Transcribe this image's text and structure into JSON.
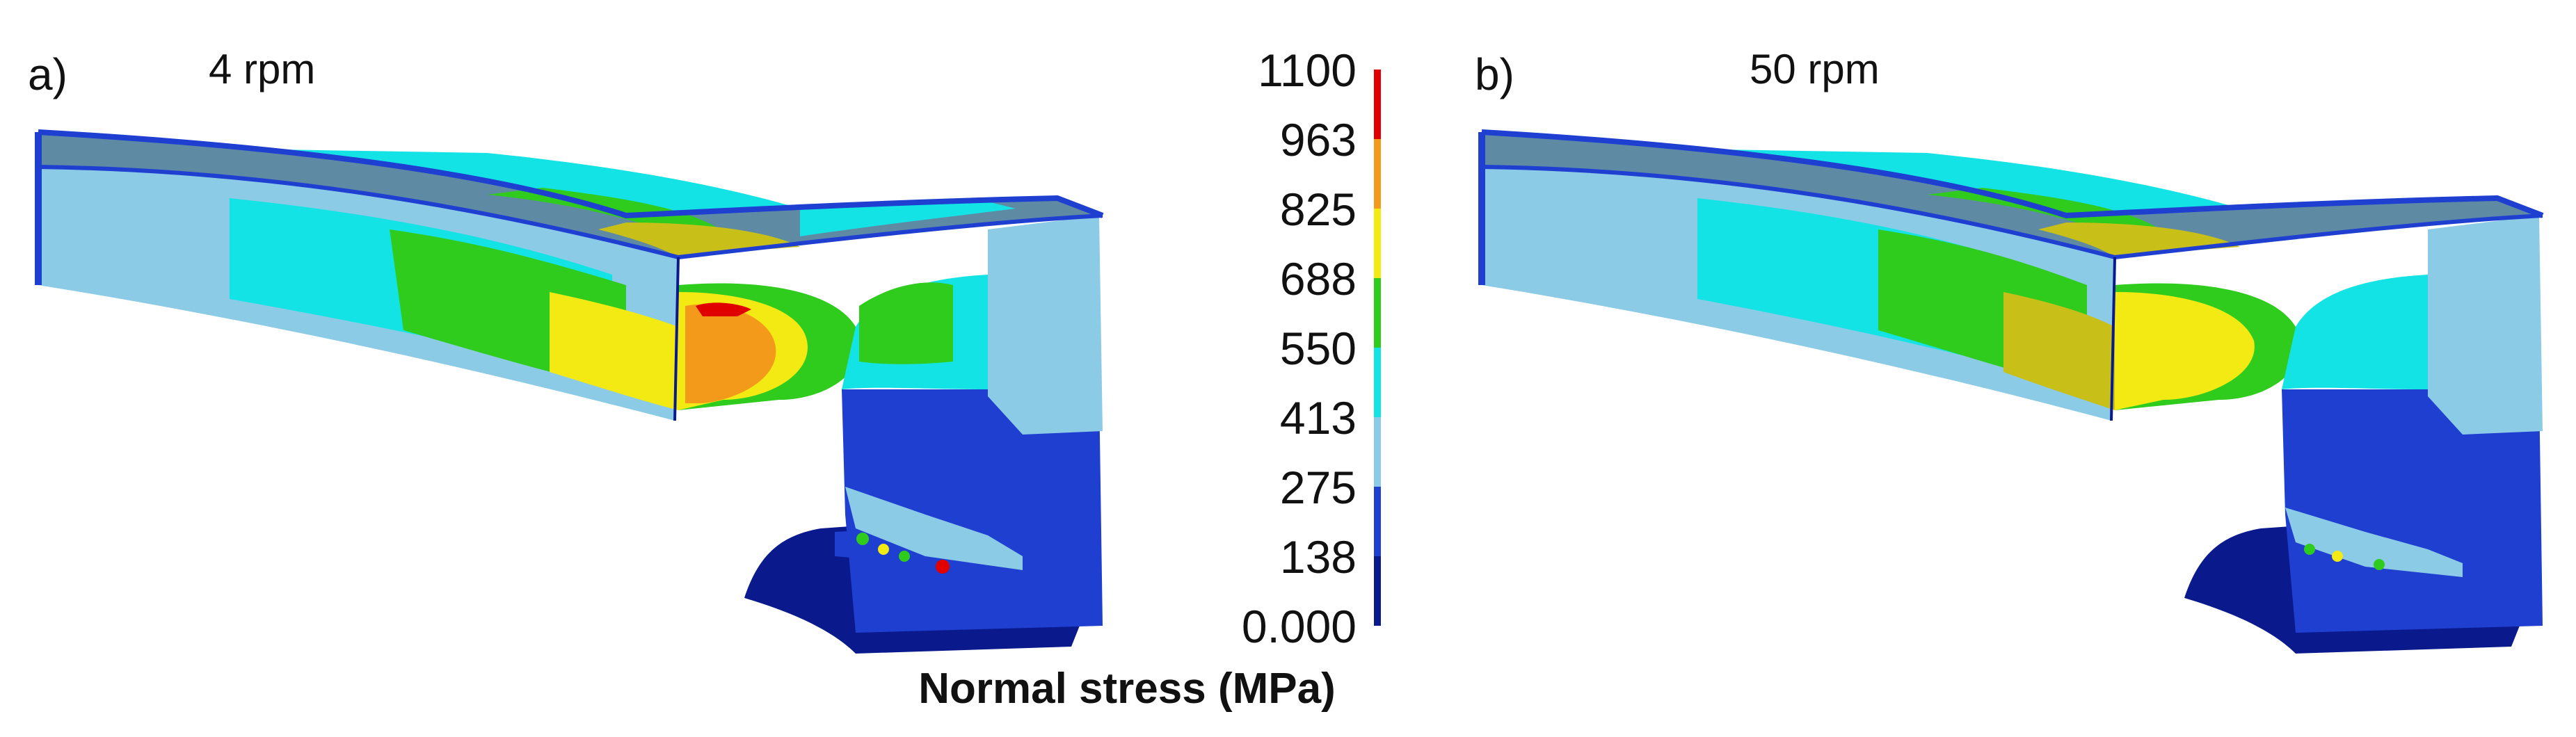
{
  "panels": [
    {
      "label": "a)",
      "speed": "4 rpm"
    },
    {
      "label": "b)",
      "speed": "50 rpm"
    }
  ],
  "legend": {
    "title": "Normal stress (MPa)",
    "ticks": [
      "1100",
      "963",
      "825",
      "688",
      "550",
      "413",
      "275",
      "138",
      "0.000"
    ],
    "band_colors": [
      "#e10000",
      "#f39a1a",
      "#f2ea12",
      "#2fcc1e",
      "#14e3e6",
      "#8ccbe6",
      "#1f3fd1",
      "#0a1a8c"
    ]
  },
  "colors": {
    "dark_blue": "#0a1a8c",
    "blue": "#1f3fd1",
    "light_blue": "#8ccbe6",
    "cyan": "#14e3e6",
    "green": "#2fcc1e",
    "yellow": "#f2ea12",
    "orange": "#f39a1a",
    "red": "#e10000",
    "grey_blue": "#5f8aa3"
  }
}
